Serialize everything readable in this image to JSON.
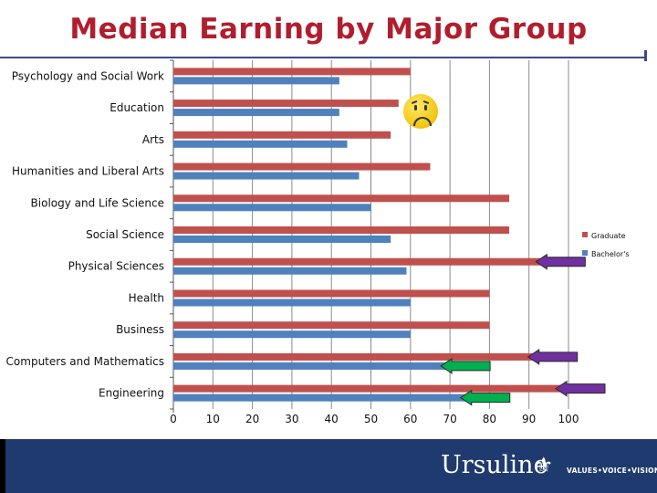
{
  "slide": {
    "title": "Median Earning by Major Group",
    "brand": "Ursuline",
    "brand_mark": "⚜",
    "tagline": "VALUES•VOICE•VISION"
  },
  "colors": {
    "graduate": "#c0504d",
    "bachelors": "#4f81bd",
    "arrow_purple": "#7030a0",
    "arrow_green": "#00b050",
    "title": "#b01e2e",
    "footer": "#1f3a6e"
  },
  "icons": {
    "face": "frowning-face-icon"
  },
  "chart_data": {
    "type": "bar",
    "orientation": "horizontal",
    "title": "Median Earning by Major Group",
    "categories": [
      "Psychology and Social Work",
      "Education",
      "Arts",
      "Humanities and Liberal Arts",
      "Biology and Life Science",
      "Social Science",
      "Physical Sciences",
      "Health",
      "Business",
      "Computers and Mathematics",
      "Engineering"
    ],
    "series": [
      {
        "name": "Graduate",
        "values": [
          60,
          57,
          55,
          65,
          85,
          85,
          95,
          80,
          80,
          93,
          100
        ]
      },
      {
        "name": "Bachelor's",
        "values": [
          42,
          42,
          44,
          47,
          50,
          55,
          59,
          60,
          60,
          70,
          75
        ]
      }
    ],
    "xlim": [
      0,
      100
    ],
    "xticks": [
      0,
      10,
      20,
      30,
      40,
      50,
      60,
      70,
      80,
      90,
      100
    ],
    "grid": true,
    "legend": "right",
    "annotations": [
      {
        "type": "arrow",
        "color": "purple",
        "category": "Physical Sciences",
        "series": "Graduate"
      },
      {
        "type": "arrow",
        "color": "purple",
        "category": "Computers and Mathematics",
        "series": "Graduate"
      },
      {
        "type": "arrow",
        "color": "purple",
        "category": "Engineering",
        "series": "Graduate"
      },
      {
        "type": "arrow",
        "color": "green",
        "category": "Computers and Mathematics",
        "series": "Bachelor's"
      },
      {
        "type": "arrow",
        "color": "green",
        "category": "Engineering",
        "series": "Bachelor's"
      }
    ]
  }
}
